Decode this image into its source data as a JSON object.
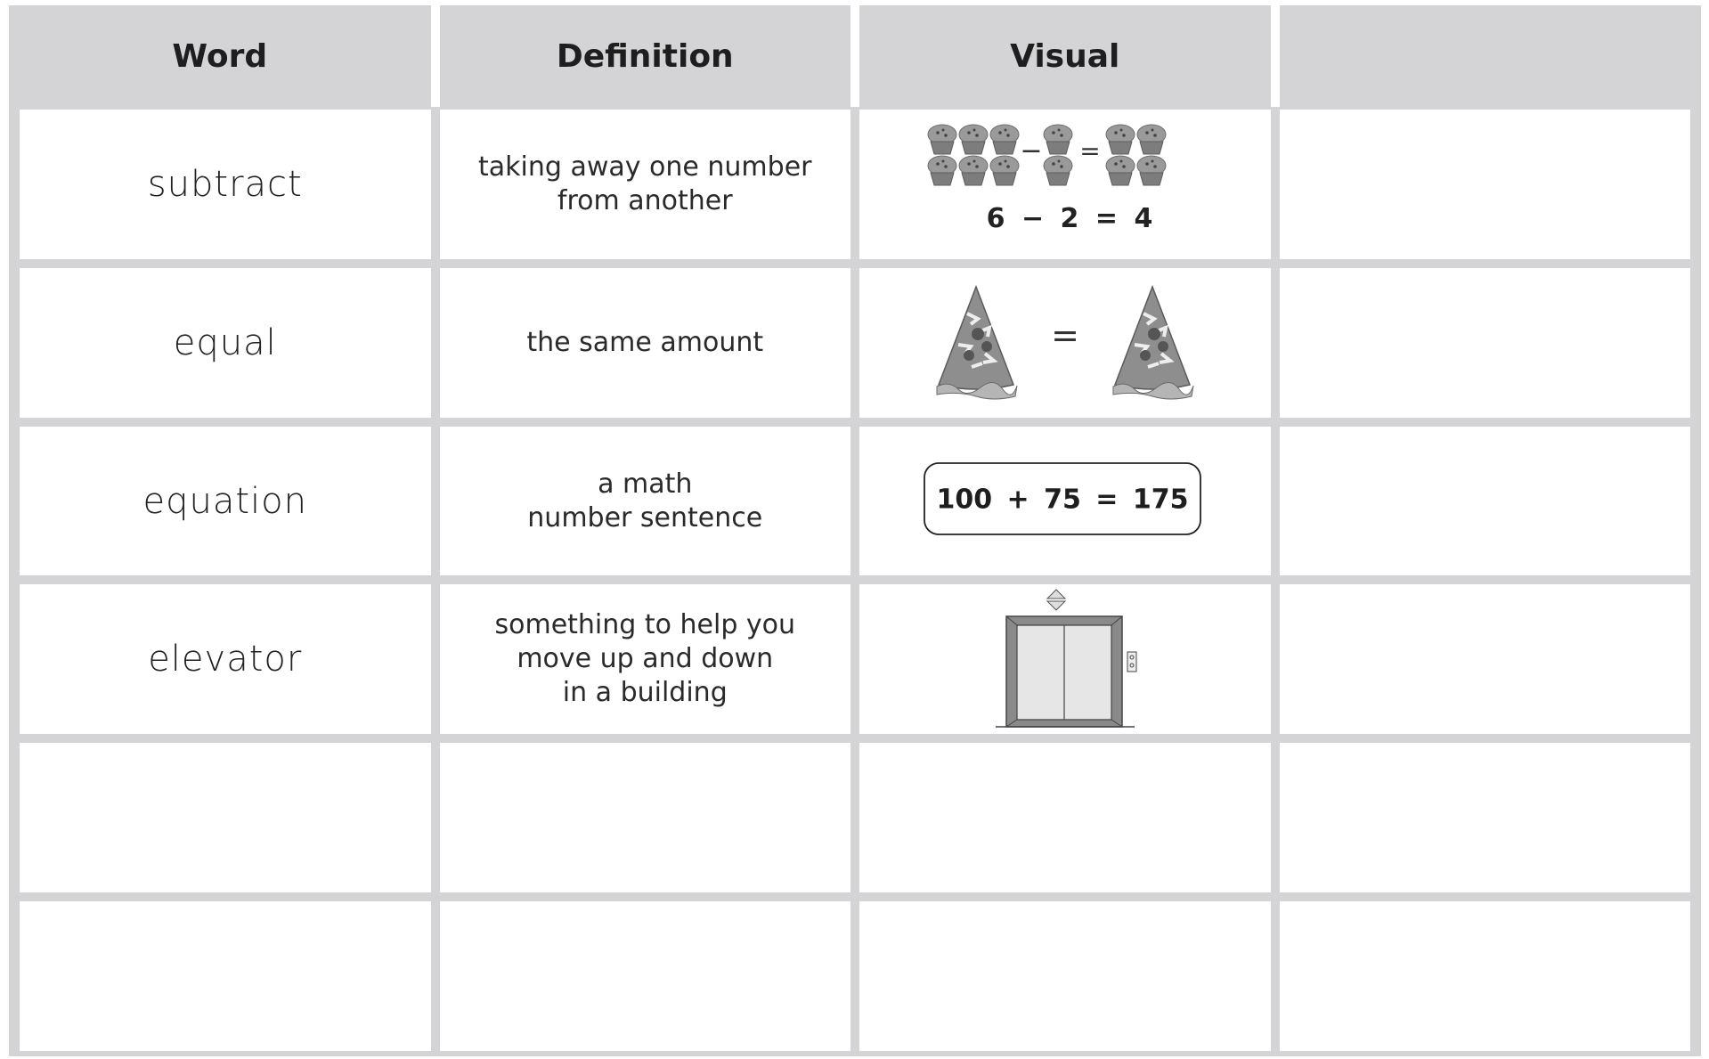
{
  "table": {
    "headers": [
      "Word",
      "Definition",
      "Visual"
    ],
    "rows": [
      {
        "word": "subtract",
        "definition": [
          "taking away one number",
          "from another"
        ],
        "visual": {
          "operators": [
            "−",
            "="
          ],
          "caption": "6 − 2 = 4"
        }
      },
      {
        "word": "equal",
        "definition": [
          "the same amount"
        ],
        "visual": {
          "operators": [
            "="
          ]
        }
      },
      {
        "word": "equation",
        "definition": [
          "a math",
          "number sentence"
        ],
        "visual": {
          "equation": "100 + 75 = 175"
        }
      },
      {
        "word": "elevator",
        "definition": [
          "something to help you",
          "move up and down",
          "in a building"
        ]
      }
    ]
  }
}
